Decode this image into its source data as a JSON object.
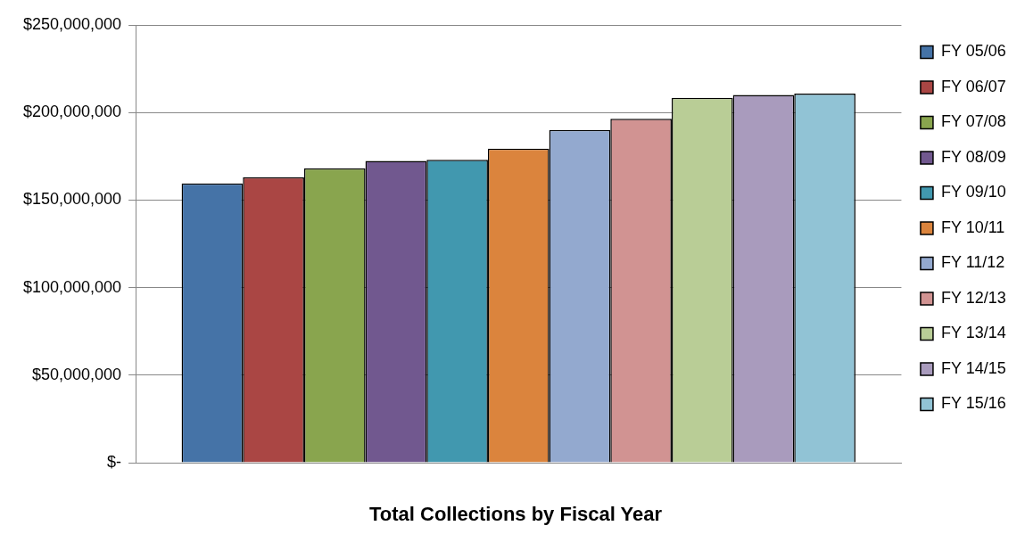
{
  "chart_data": {
    "type": "bar",
    "title": "Total Collections by Fiscal Year",
    "categories": [
      null
    ],
    "series": [
      {
        "name": "FY 05/06",
        "color": "#4573a7",
        "values": [
          159500000
        ]
      },
      {
        "name": "FY 06/07",
        "color": "#aa4644",
        "values": [
          163000000
        ]
      },
      {
        "name": "FY 07/08",
        "color": "#89a54e",
        "values": [
          168200000
        ]
      },
      {
        "name": "FY 08/09",
        "color": "#71588f",
        "values": [
          172400000
        ]
      },
      {
        "name": "FY 09/10",
        "color": "#4198af",
        "values": [
          173000000
        ]
      },
      {
        "name": "FY 10/11",
        "color": "#db843d",
        "values": [
          179300000
        ]
      },
      {
        "name": "FY 11/12",
        "color": "#93a9cf",
        "values": [
          190000000
        ]
      },
      {
        "name": "FY 12/13",
        "color": "#d19392",
        "values": [
          196400000
        ]
      },
      {
        "name": "FY 13/14",
        "color": "#b9cd96",
        "values": [
          208400000
        ]
      },
      {
        "name": "FY 14/15",
        "color": "#a99bbd",
        "values": [
          210000000
        ]
      },
      {
        "name": "FY 15/16",
        "color": "#91c3d5",
        "values": [
          210800000
        ]
      }
    ],
    "ylim": [
      0,
      250000000
    ],
    "yticks": [
      {
        "value": 0,
        "label": "$-"
      },
      {
        "value": 50000000,
        "label": "$50,000,000"
      },
      {
        "value": 100000000,
        "label": "$100,000,000"
      },
      {
        "value": 150000000,
        "label": "$150,000,000"
      },
      {
        "value": 200000000,
        "label": "$200,000,000"
      },
      {
        "value": 250000000,
        "label": "$250,000,000"
      }
    ],
    "grid": "y",
    "legend": "right"
  }
}
